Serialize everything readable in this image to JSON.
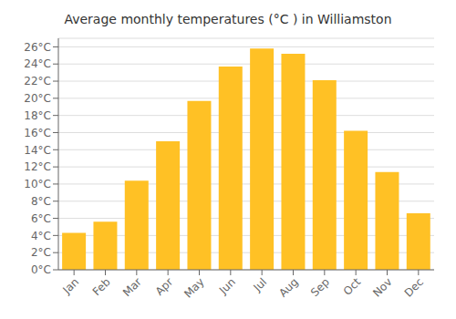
{
  "chart_data": {
    "type": "bar",
    "title": "Average monthly temperatures (°C ) in Williamston",
    "categories": [
      "Jan",
      "Feb",
      "Mar",
      "Apr",
      "May",
      "Jun",
      "Jul",
      "Aug",
      "Sep",
      "Oct",
      "Nov",
      "Dec"
    ],
    "values": [
      4.3,
      5.6,
      10.4,
      15.0,
      19.7,
      23.7,
      25.8,
      25.2,
      22.1,
      16.2,
      11.4,
      6.6
    ],
    "color": "#FFC125",
    "ylim": [
      0,
      27
    ],
    "yticks": [
      {
        "value": 0,
        "label": "0°C"
      },
      {
        "value": 2,
        "label": "2°C"
      },
      {
        "value": 4,
        "label": "4°C"
      },
      {
        "value": 6,
        "label": "6°C"
      },
      {
        "value": 8,
        "label": "8°C"
      },
      {
        "value": 10,
        "label": "10°C"
      },
      {
        "value": 12,
        "label": "12°C"
      },
      {
        "value": 14,
        "label": "14°C"
      },
      {
        "value": 16,
        "label": "16°C"
      },
      {
        "value": 18,
        "label": "18°C"
      },
      {
        "value": 20,
        "label": "20°C"
      },
      {
        "value": 22,
        "label": "22°C"
      },
      {
        "value": 24,
        "label": "24°C"
      },
      {
        "value": 26,
        "label": "26°C"
      }
    ],
    "grid": true
  }
}
